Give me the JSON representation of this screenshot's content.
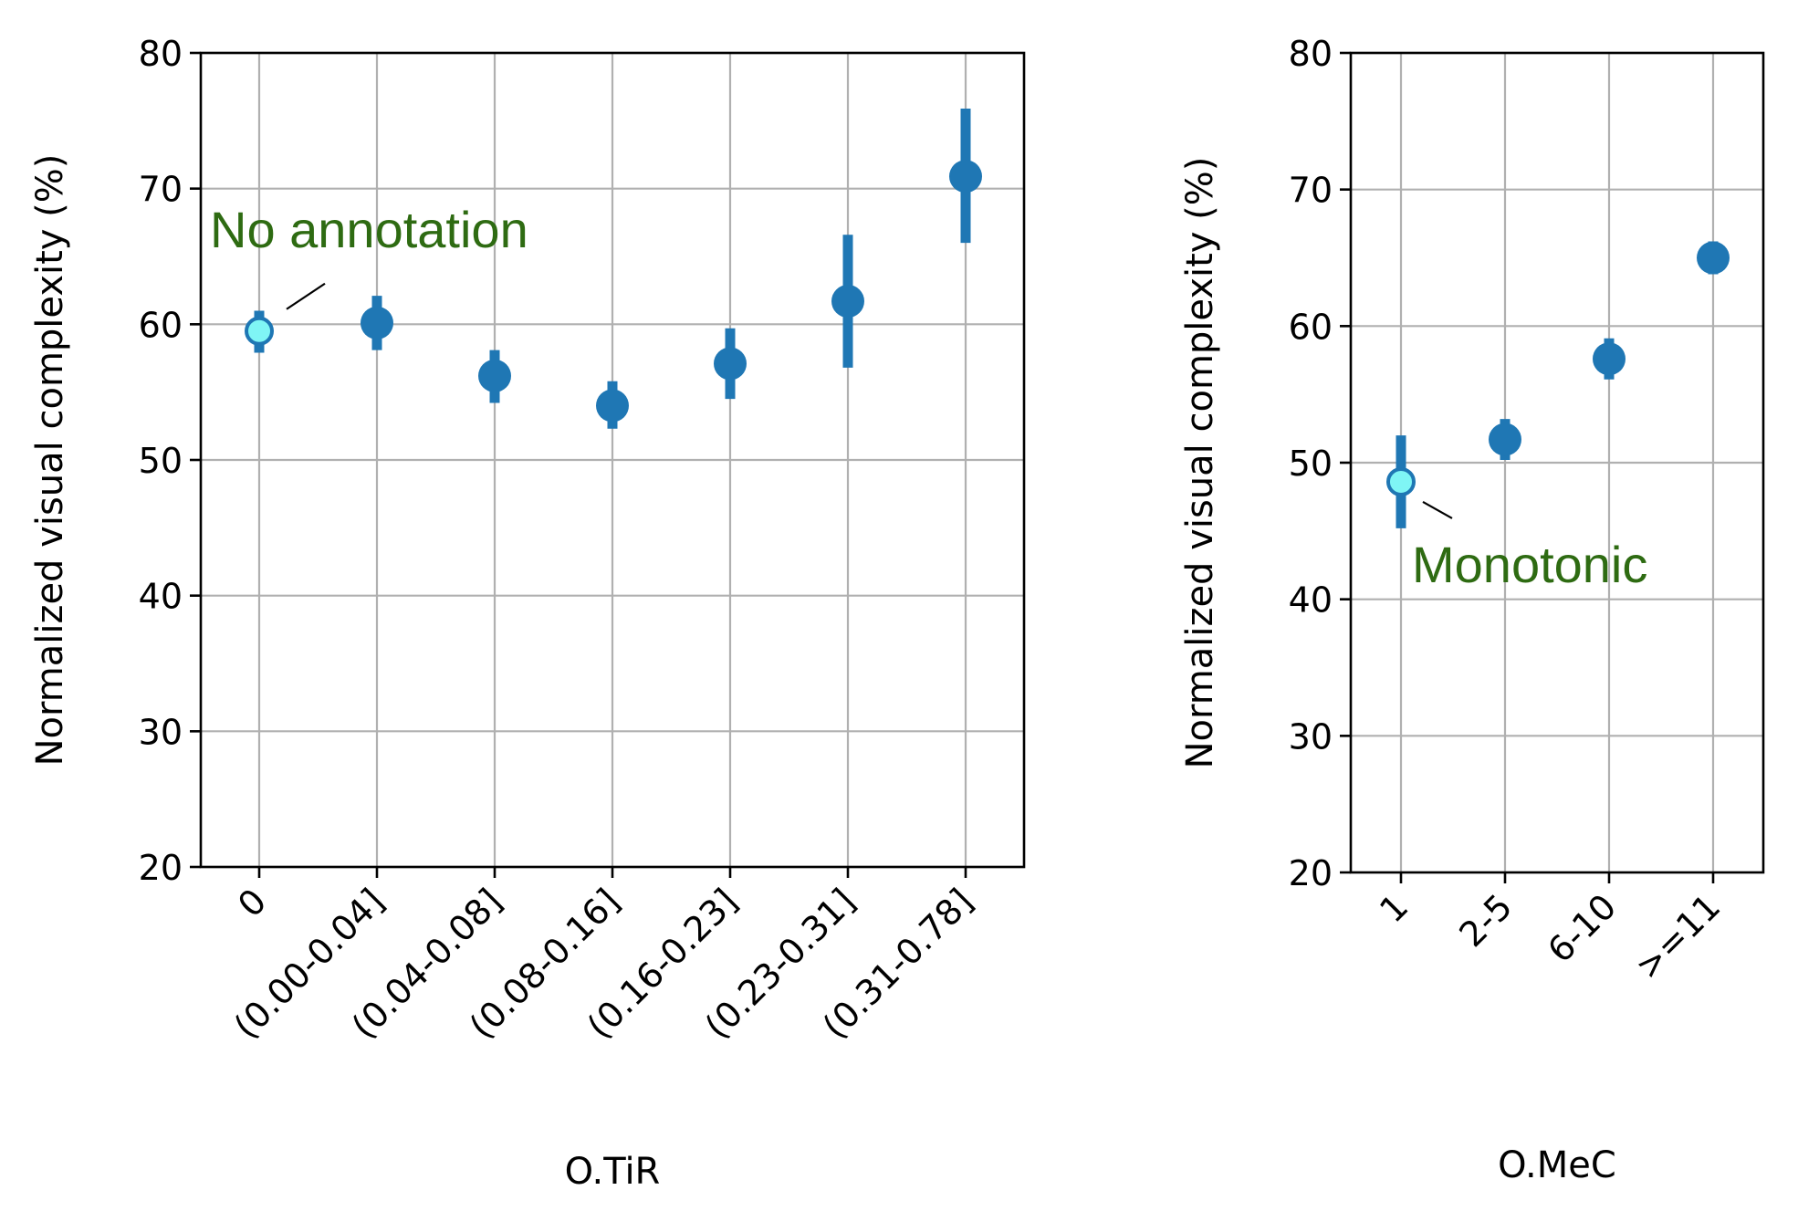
{
  "chart_data": [
    {
      "type": "errorbar",
      "xlabel": "O.TiR",
      "ylabel": "Normalized visual complexity (%)",
      "ylim": [
        20,
        80
      ],
      "yticks": [
        20,
        30,
        40,
        50,
        60,
        70,
        80
      ],
      "grid": true,
      "categories": [
        "0",
        "(0.00-0.04]",
        "(0.04-0.08]",
        "(0.08-0.16]",
        "(0.16-0.23]",
        "(0.23-0.31]",
        "(0.31-0.78]"
      ],
      "values": [
        59.5,
        60.1,
        56.2,
        54.0,
        57.1,
        61.7,
        70.9
      ],
      "ci_low": [
        57.9,
        58.1,
        54.2,
        52.3,
        54.5,
        56.8,
        66.0
      ],
      "ci_high": [
        61.0,
        62.1,
        58.1,
        55.8,
        59.7,
        66.6,
        75.9
      ],
      "highlight_index": 0,
      "annotation": "No annotation",
      "colors": {
        "point": "#1f77b4",
        "highlight_fill": "#7ff5f5",
        "annotation": "#2e6b12"
      }
    },
    {
      "type": "errorbar",
      "xlabel": "O.MeC",
      "ylabel": "Normalized visual complexity (%)",
      "ylim": [
        20,
        80
      ],
      "yticks": [
        20,
        30,
        40,
        50,
        60,
        70,
        80
      ],
      "grid": true,
      "categories": [
        "1",
        "2-5",
        "6-10",
        ">=11"
      ],
      "values": [
        48.6,
        51.7,
        57.6,
        65.0
      ],
      "ci_low": [
        45.2,
        50.2,
        56.1,
        63.8
      ],
      "ci_high": [
        52.0,
        53.2,
        59.1,
        66.2
      ],
      "highlight_index": 0,
      "annotation": "Monotonic",
      "colors": {
        "point": "#1f77b4",
        "highlight_fill": "#7ff5f5",
        "annotation": "#2e6b12"
      }
    }
  ]
}
